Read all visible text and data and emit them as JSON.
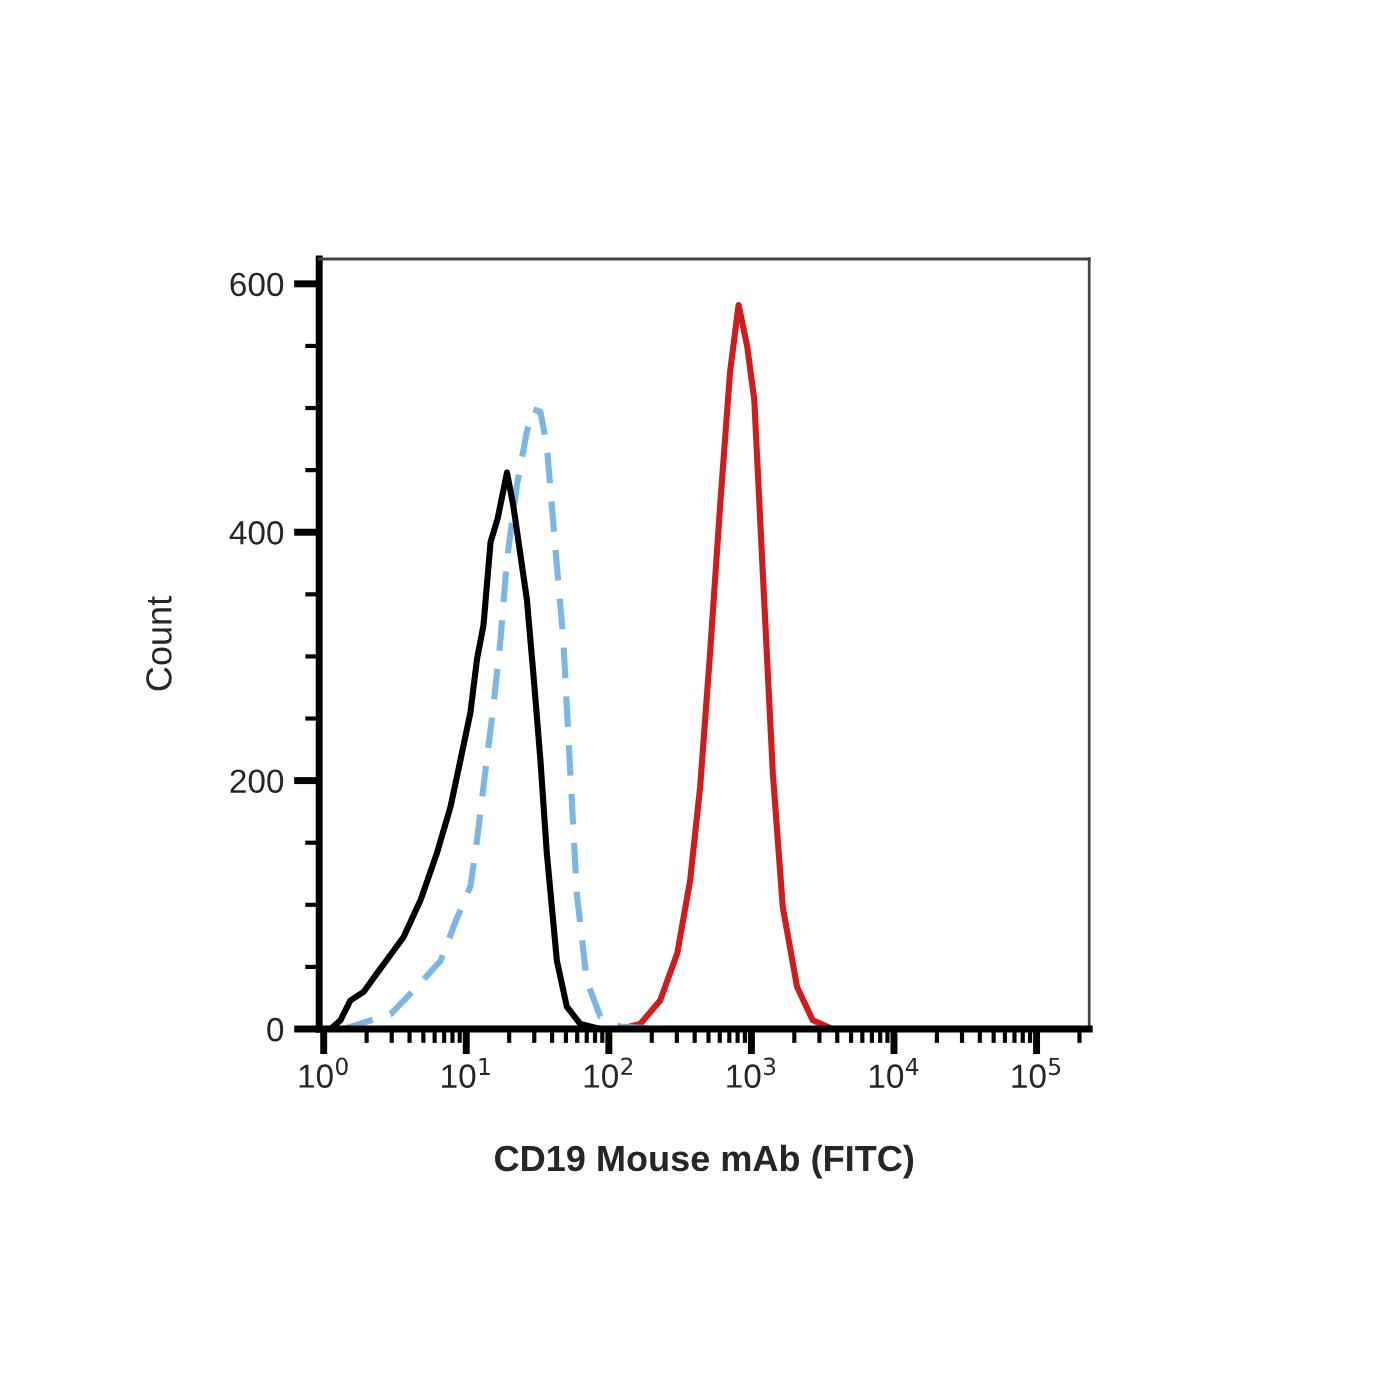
{
  "chart_data": {
    "type": "line",
    "xlabel": "CD19 Mouse mAb (FITC)",
    "ylabel": "Count",
    "log": "x",
    "xlim": [
      0.93,
      234000
    ],
    "ylim": [
      0,
      620
    ],
    "xticks": [
      {
        "value": 1,
        "label": "10$^{0}$"
      },
      {
        "value": 2,
        "label": null
      },
      {
        "value": 3,
        "label": null
      },
      {
        "value": 4,
        "label": null
      },
      {
        "value": 5,
        "label": null
      },
      {
        "value": 6,
        "label": null
      },
      {
        "value": 7,
        "label": null
      },
      {
        "value": 8,
        "label": null
      },
      {
        "value": 9,
        "label": null
      },
      {
        "value": 10,
        "label": "10$^{1}$"
      },
      {
        "value": 20,
        "label": null
      },
      {
        "value": 30,
        "label": null
      },
      {
        "value": 40,
        "label": null
      },
      {
        "value": 50,
        "label": null
      },
      {
        "value": 60,
        "label": null
      },
      {
        "value": 70,
        "label": null
      },
      {
        "value": 80,
        "label": null
      },
      {
        "value": 90,
        "label": null
      },
      {
        "value": 100,
        "label": "10$^{2}$"
      },
      {
        "value": 200,
        "label": null
      },
      {
        "value": 300,
        "label": null
      },
      {
        "value": 400,
        "label": null
      },
      {
        "value": 500,
        "label": null
      },
      {
        "value": 600,
        "label": null
      },
      {
        "value": 700,
        "label": null
      },
      {
        "value": 800,
        "label": null
      },
      {
        "value": 900,
        "label": null
      },
      {
        "value": 1000,
        "label": "10$^{3}$"
      },
      {
        "value": 2000,
        "label": null
      },
      {
        "value": 3000,
        "label": null
      },
      {
        "value": 4000,
        "label": null
      },
      {
        "value": 5000,
        "label": null
      },
      {
        "value": 6000,
        "label": null
      },
      {
        "value": 7000,
        "label": null
      },
      {
        "value": 8000,
        "label": null
      },
      {
        "value": 9000,
        "label": null
      },
      {
        "value": 10000,
        "label": "10$^{4}$"
      },
      {
        "value": 20000,
        "label": null
      },
      {
        "value": 30000,
        "label": null
      },
      {
        "value": 40000,
        "label": null
      },
      {
        "value": 50000,
        "label": null
      },
      {
        "value": 60000,
        "label": null
      },
      {
        "value": 70000,
        "label": null
      },
      {
        "value": 80000,
        "label": null
      },
      {
        "value": 90000,
        "label": null
      },
      {
        "value": 100000,
        "label": "10$^{5}$"
      },
      {
        "value": 200000,
        "label": null
      }
    ],
    "yticks": [
      0,
      {
        "value": 50,
        "label": null
      },
      {
        "value": 100,
        "label": null
      },
      {
        "value": 150,
        "label": null
      },
      200,
      {
        "value": 250,
        "label": null
      },
      {
        "value": 300,
        "label": null
      },
      {
        "value": 350,
        "label": null
      },
      400,
      {
        "value": 450,
        "label": null
      },
      {
        "value": 500,
        "label": null
      },
      {
        "value": 550,
        "label": null
      },
      600
    ],
    "grid": false,
    "legend": false,
    "marker": "none",
    "series": [
      {
        "color": "#d01c1c",
        "line_style": "solid",
        "x": [
          0.93,
          120,
          166,
          229,
          302,
          372,
          437,
          513,
          603,
          708,
          813,
          933,
          1047,
          1202,
          1413,
          1660,
          2089,
          2692,
          3715,
          230000
        ],
        "values": [
          0,
          0,
          4,
          23,
          61,
          120,
          195,
          303,
          421,
          529,
          583,
          550,
          507,
          367,
          206,
          98,
          34,
          7,
          0,
          0
        ]
      },
      {
        "color": "#7cb6e4",
        "line_style": "dashed",
        "x": [
          1.38,
          2.95,
          4.27,
          6.61,
          8.51,
          10.7,
          11.9,
          13.2,
          15.5,
          17.4,
          19.3,
          22.6,
          26.6,
          29.5,
          33.1,
          36.7,
          43.2,
          47.9,
          53.7,
          59.6,
          70.0,
          87.1,
          120,
          257,
          1780
        ],
        "values": [
          0,
          12,
          31,
          55,
          88,
          115,
          152,
          195,
          260,
          314,
          378,
          437,
          481,
          499,
          497,
          470,
          373,
          314,
          206,
          109,
          39,
          10,
          2,
          0,
          0
        ]
      },
      {
        "color": "#000000",
        "line_style": "solid",
        "x": [
          1.12,
          1.31,
          1.54,
          1.91,
          2.37,
          3.09,
          3.63,
          4.79,
          6.24,
          7.76,
          9.12,
          10.7,
          11.9,
          13.2,
          14.8,
          16.6,
          19.3,
          21.4,
          26.6,
          29.5,
          33.1,
          36.7,
          43.2,
          50.7,
          63.1,
          87.1
        ],
        "values": [
          0,
          7,
          23,
          30,
          45,
          63,
          74,
          104,
          142,
          179,
          217,
          255,
          298,
          325,
          392,
          411,
          448,
          421,
          346,
          287,
          217,
          142,
          55,
          18,
          4,
          0
        ]
      }
    ]
  }
}
